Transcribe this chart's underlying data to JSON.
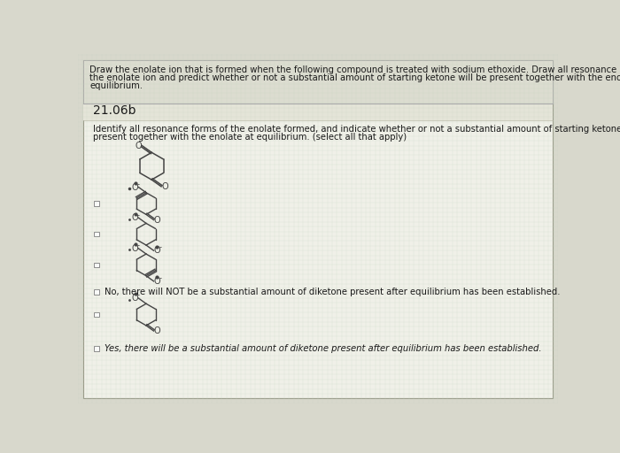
{
  "background_color": "#d8d8cc",
  "page_bg": "#f5f5ee",
  "header_bg": "#d0d0c4",
  "text_color": "#1a1a1a",
  "molecule_color": "#444444",
  "header_text_line1": "Draw the enolate ion that is formed when the following compound is treated with sodium ethoxide. Draw all resonance structures of",
  "header_text_line2": "the enolate ion and predict whether or not a substantial amount of starting ketone will be present together with the enolate at",
  "header_text_line3": "equilibrium.",
  "problem_number": "21.06b",
  "instr_line1": "Identify all resonance forms of the enolate formed, and indicate whether or not a substantial amount of starting ketone will be",
  "instr_line2": "present together with the enolate at equilibrium. (select all that apply)",
  "option_no_text": "No, there will NOT be a substantial amount of diketone present after equilibrium has been established.",
  "option_yes_text": "Yes, there will be a substantial amount of diketone present after equilibrium has been established.",
  "grid_color": "#c8d8c8",
  "border_color": "#aaaaaa"
}
